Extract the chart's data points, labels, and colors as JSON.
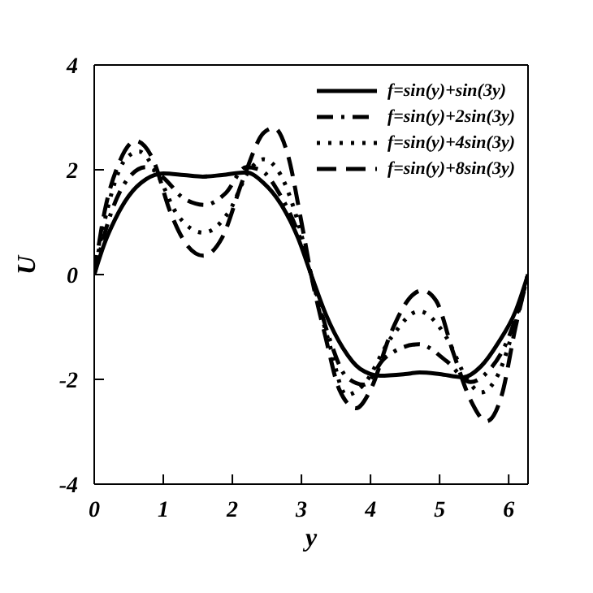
{
  "chart_data": {
    "type": "line",
    "xlabel": "y",
    "ylabel": "U",
    "xlim": [
      0,
      6.28
    ],
    "ylim": [
      -4,
      4
    ],
    "xticks": [
      0,
      1,
      2,
      3,
      4,
      5,
      6
    ],
    "yticks": [
      -4,
      -2,
      0,
      2,
      4
    ],
    "grid": false,
    "legend": "top right",
    "marker": "none",
    "series": [
      {
        "name": "f=sin(y)+sin(3y)",
        "color": "#000000",
        "line_style": "solid",
        "x": [
          0,
          0.15,
          0.3,
          0.5,
          0.75,
          1.0,
          1.3,
          1.57,
          1.85,
          2.2,
          2.45,
          2.7,
          2.95,
          3.14,
          3.35,
          3.6,
          3.85,
          4.14,
          4.5,
          4.71,
          5.0,
          5.34,
          5.6,
          5.85,
          6.1,
          6.28
        ],
        "values": [
          0,
          0.6,
          1.05,
          1.5,
          1.82,
          1.93,
          1.9,
          1.87,
          1.9,
          1.95,
          1.75,
          1.35,
          0.7,
          0,
          -0.75,
          -1.4,
          -1.8,
          -1.93,
          -1.9,
          -1.87,
          -1.9,
          -1.96,
          -1.75,
          -1.3,
          -0.7,
          0
        ]
      },
      {
        "name": "f=sin(y)+2sin(3y)",
        "color": "#000000",
        "line_style": "dashdot",
        "x": [
          0,
          0.25,
          0.5,
          0.75,
          1.0,
          1.3,
          1.6,
          1.9,
          2.2,
          2.4,
          2.7,
          2.95,
          3.14,
          3.4,
          3.65,
          3.9,
          4.2,
          4.7,
          5.1,
          5.45,
          5.7,
          6.0,
          6.28
        ],
        "values": [
          0,
          1.2,
          1.85,
          2.05,
          1.85,
          1.45,
          1.33,
          1.55,
          2.05,
          2.0,
          1.5,
          0.8,
          0,
          -1.2,
          -1.95,
          -2.1,
          -1.6,
          -1.33,
          -1.65,
          -2.05,
          -1.85,
          -1.2,
          0
        ]
      },
      {
        "name": "f=sin(y)+4sin(3y)",
        "color": "#000000",
        "line_style": "dotted",
        "x": [
          0,
          0.2,
          0.45,
          0.65,
          0.9,
          1.2,
          1.58,
          1.95,
          2.25,
          2.45,
          2.7,
          2.95,
          3.14,
          3.4,
          3.65,
          3.9,
          4.3,
          4.7,
          5.1,
          5.4,
          5.6,
          5.85,
          6.1,
          6.28
        ],
        "values": [
          0,
          1.3,
          2.2,
          2.35,
          1.95,
          1.15,
          0.8,
          1.2,
          2.0,
          2.2,
          1.9,
          1.0,
          0,
          -1.3,
          -2.3,
          -2.1,
          -1.2,
          -0.7,
          -1.2,
          -2.0,
          -2.25,
          -1.9,
          -0.9,
          0
        ]
      },
      {
        "name": "f=sin(y)+8sin(3y)",
        "color": "#000000",
        "line_style": "dashed",
        "x": [
          0,
          0.15,
          0.35,
          0.6,
          0.85,
          1.1,
          1.35,
          1.58,
          1.85,
          2.15,
          2.45,
          2.6,
          2.8,
          3.0,
          3.14,
          3.35,
          3.55,
          3.79,
          4.0,
          4.3,
          4.6,
          4.75,
          4.95,
          5.2,
          5.45,
          5.68,
          5.9,
          6.1,
          6.28
        ],
        "values": [
          0,
          1.2,
          2.1,
          2.55,
          2.2,
          1.2,
          0.55,
          0.36,
          0.7,
          1.8,
          2.7,
          2.8,
          2.3,
          1.0,
          0,
          -1.2,
          -2.2,
          -2.55,
          -2.2,
          -1.1,
          -0.4,
          -0.3,
          -0.5,
          -1.5,
          -2.4,
          -2.8,
          -2.3,
          -1.0,
          0
        ]
      }
    ]
  }
}
